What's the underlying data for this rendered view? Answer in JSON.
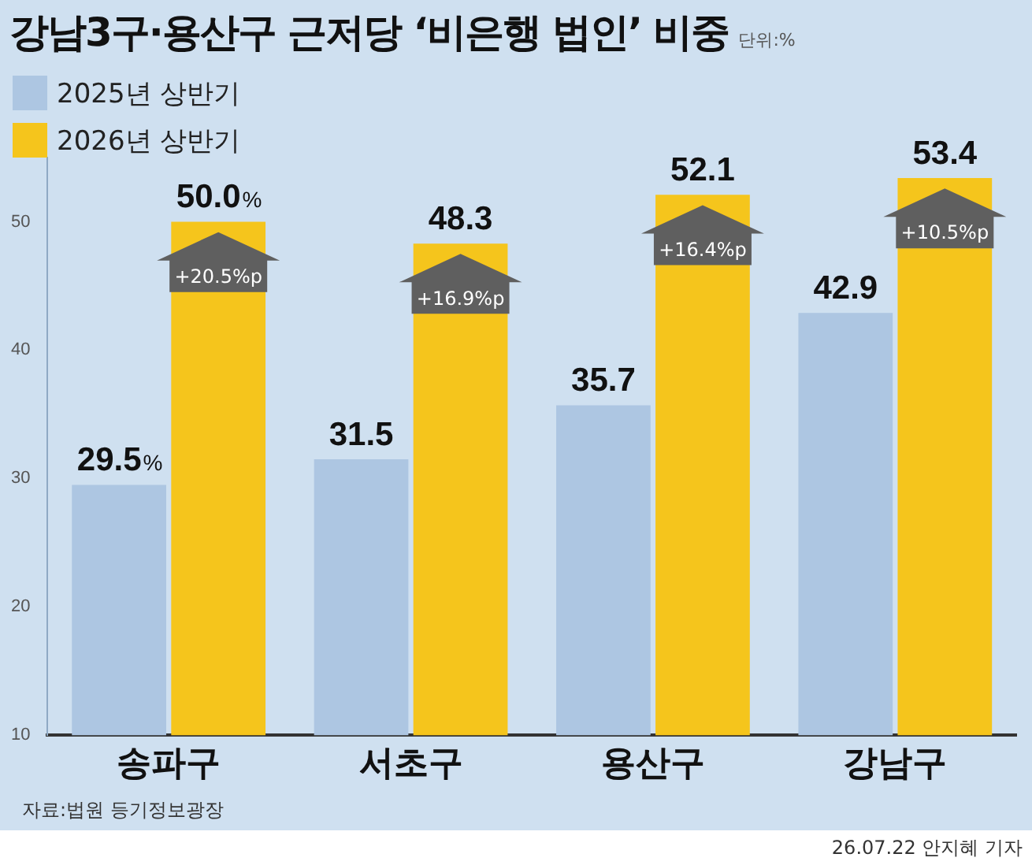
{
  "chart_data": {
    "type": "bar",
    "title": "강남3구·용산구 근저당 ‘비은행 법인’ 비중",
    "subtitle": "단위:%",
    "categories": [
      "송파구",
      "서초구",
      "용산구",
      "강남구"
    ],
    "series": [
      {
        "name": "2025년 상반기",
        "color": "#adc6e2",
        "values": [
          29.5,
          31.5,
          35.7,
          42.9
        ],
        "value_labels": [
          "29.5%",
          "31.5",
          "35.7",
          "42.9"
        ]
      },
      {
        "name": "2026년 상반기",
        "color": "#f5c51c",
        "values": [
          50.0,
          48.3,
          52.1,
          53.4
        ],
        "value_labels": [
          "50.0%",
          "48.3",
          "52.1",
          "53.4"
        ]
      }
    ],
    "ylim": [
      10,
      55
    ],
    "yticks": [
      10,
      20,
      30,
      40,
      50
    ],
    "grid": false,
    "legend": "top left",
    "annotations": [
      {
        "text": "+20.5%p",
        "x": "송파구",
        "y": 46
      },
      {
        "text": "+16.9%p",
        "x": "서초구",
        "y": 44.3
      },
      {
        "text": "+16.4%p",
        "x": "용산구",
        "y": 48.1
      },
      {
        "text": "+10.5%p",
        "x": "강남구",
        "y": 49.4
      },
      "자료:법원 등기정보광장",
      "26.07.22 안지혜 기자"
    ]
  }
}
